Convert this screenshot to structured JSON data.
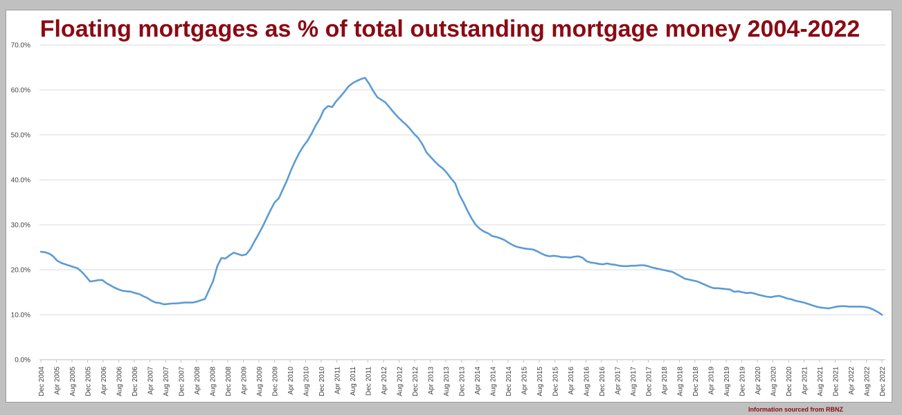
{
  "chart_data": {
    "type": "line",
    "title": "Floating mortgages as % of total outstanding mortgage money 2004-2022",
    "xlabel": "",
    "ylabel": "",
    "ylim": [
      0,
      70
    ],
    "y_ticks": [
      "0.0%",
      "10.0%",
      "20.0%",
      "30.0%",
      "40.0%",
      "50.0%",
      "60.0%",
      "70.0%"
    ],
    "x_tick_labels": [
      "Dec 2004",
      "Apr 2005",
      "Aug 2005",
      "Dec 2005",
      "Apr 2006",
      "Aug 2006",
      "Dec 2006",
      "Apr 2007",
      "Aug 2007",
      "Dec 2007",
      "Apr 2008",
      "Aug 2008",
      "Dec 2008",
      "Apr 2009",
      "Aug 2009",
      "Dec 2009",
      "Apr 2010",
      "Aug 2010",
      "Dec 2010",
      "Apr 2011",
      "Aug 2011",
      "Dec 2011",
      "Apr 2012",
      "Aug 2012",
      "Dec 2012",
      "Apr 2013",
      "Aug 2013",
      "Dec 2013",
      "Apr 2014",
      "Aug 2014",
      "Dec 2014",
      "Apr 2015",
      "Aug 2015",
      "Dec 2015",
      "Apr 2016",
      "Aug 2016",
      "Dec 2016",
      "Apr 2017",
      "Aug 2017",
      "Dec 2017",
      "Apr 2018",
      "Aug 2018",
      "Dec 2018",
      "Apr 2019",
      "Aug 2019",
      "Dec 2019",
      "Apr 2020",
      "Aug 2020",
      "Dec 2020",
      "Apr 2021",
      "Aug 2021",
      "Dec 2021",
      "Apr 2022",
      "Aug 2022",
      "Dec 2022"
    ],
    "grid": true,
    "legend": "none",
    "series": [
      {
        "color": "#5b9bd5",
        "values": [
          24.0,
          23.9,
          23.6,
          23.0,
          22.0,
          21.5,
          21.2,
          20.9,
          20.6,
          20.3,
          19.5,
          18.5,
          17.4,
          17.5,
          17.7,
          17.7,
          17.0,
          16.5,
          16.0,
          15.6,
          15.3,
          15.2,
          15.1,
          14.8,
          14.6,
          14.1,
          13.7,
          13.1,
          12.7,
          12.6,
          12.3,
          12.4,
          12.5,
          12.5,
          12.6,
          12.7,
          12.7,
          12.7,
          12.9,
          13.2,
          13.5,
          15.5,
          17.5,
          20.8,
          22.6,
          22.5,
          23.2,
          23.8,
          23.5,
          23.2,
          23.4,
          24.5,
          26.2,
          27.8,
          29.5,
          31.4,
          33.3,
          35.0,
          35.9,
          37.9,
          39.9,
          42.2,
          44.2,
          46.0,
          47.5,
          48.7,
          50.3,
          52.1,
          53.6,
          55.6,
          56.4,
          56.2,
          57.5,
          58.5,
          59.6,
          60.8,
          61.5,
          62.0,
          62.4,
          62.7,
          61.4,
          59.8,
          58.4,
          57.8,
          57.2,
          56.1,
          55.0,
          54.0,
          53.1,
          52.3,
          51.3,
          50.2,
          49.3,
          47.9,
          46.1,
          45.1,
          44.1,
          43.2,
          42.5,
          41.5,
          40.3,
          39.2,
          36.7,
          35.0,
          33.1,
          31.4,
          30.0,
          29.1,
          28.5,
          28.1,
          27.5,
          27.3,
          27.0,
          26.6,
          26.0,
          25.5,
          25.1,
          24.9,
          24.7,
          24.6,
          24.5,
          24.1,
          23.6,
          23.2,
          23.0,
          23.1,
          23.0,
          22.8,
          22.8,
          22.7,
          22.9,
          23.0,
          22.7,
          21.9,
          21.6,
          21.5,
          21.3,
          21.2,
          21.4,
          21.2,
          21.1,
          20.9,
          20.8,
          20.8,
          20.9,
          20.9,
          21.0,
          21.0,
          20.8,
          20.5,
          20.3,
          20.1,
          19.9,
          19.7,
          19.5,
          19.0,
          18.5,
          18.0,
          17.8,
          17.6,
          17.4,
          17.0,
          16.6,
          16.2,
          15.9,
          15.9,
          15.8,
          15.7,
          15.6,
          15.1,
          15.2,
          15.0,
          14.8,
          14.9,
          14.7,
          14.4,
          14.2,
          14.0,
          13.9,
          14.1,
          14.2,
          13.9,
          13.6,
          13.4,
          13.1,
          12.9,
          12.7,
          12.4,
          12.1,
          11.8,
          11.6,
          11.5,
          11.4,
          11.6,
          11.8,
          11.9,
          11.9,
          11.8,
          11.8,
          11.8,
          11.8,
          11.7,
          11.5,
          11.1,
          10.6,
          10.0
        ]
      }
    ]
  },
  "footer": {
    "source_note": "Information sourced from RBNZ"
  }
}
